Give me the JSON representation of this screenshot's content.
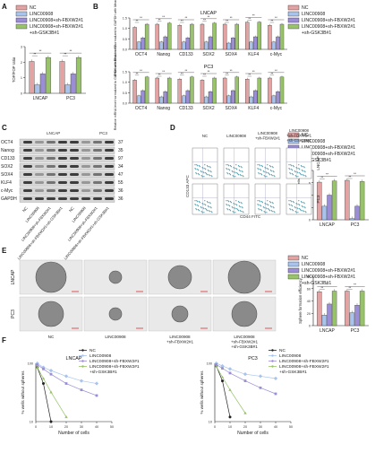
{
  "colors": {
    "NC": "#e2a3a2",
    "LINC00908": "#a9c4ec",
    "FBXW2": "#9b8dd6",
    "GSK3B": "#98c36a"
  },
  "panels": {
    "A": "A",
    "B": "B",
    "C": "C",
    "D": "D",
    "E": "E",
    "F": "F"
  },
  "legend": {
    "nc": "NC",
    "linc": "LINC00908",
    "fbx_line": "LINC00908+sh-FBXW2#1",
    "gsk_line1": "LINC00908+sh-FBXW2#1",
    "gsk_line2": "+sh-GSK3B#1"
  },
  "chart_data": [
    {
      "id": "A",
      "type": "bar",
      "categories": [
        "LNCAP",
        "PC3"
      ],
      "ylabel": "TOP/FOP ratio",
      "yticks": [
        "0",
        "1",
        "2",
        "3"
      ],
      "ylim": [
        0,
        3
      ],
      "series": [
        {
          "name": "NC",
          "values": [
            2.05,
            2.05
          ]
        },
        {
          "name": "LINC00908",
          "values": [
            0.55,
            0.55
          ]
        },
        {
          "name": "LINC00908+sh-FBXW2#1",
          "values": [
            1.25,
            1.25
          ]
        },
        {
          "name": "LINC00908+sh-FBXW2#1+sh-GSK3B#1",
          "values": [
            2.3,
            2.3
          ]
        }
      ]
    },
    {
      "id": "B1",
      "type": "bar",
      "title": "LNCAP",
      "categories": [
        "OCT4",
        "Nanog",
        "CD133",
        "SOX2",
        "SOX4",
        "KLF4",
        "c-Myc"
      ],
      "ylabel": "Relative mRNA level normalized to GAPDH with Mean ± SD",
      "yticks": [
        "0.0",
        "0.5",
        "1.0",
        "1.5"
      ],
      "ylim": [
        0,
        1.5
      ],
      "series": [
        {
          "name": "NC",
          "values": [
            1.05,
            1.2,
            1.15,
            1.2,
            1.2,
            1.3,
            1.15
          ]
        },
        {
          "name": "LINC00908",
          "values": [
            0.35,
            0.35,
            0.35,
            0.35,
            0.3,
            0.35,
            0.35
          ]
        },
        {
          "name": "LINC00908+sh-FBXW2#1",
          "values": [
            0.55,
            0.6,
            0.55,
            0.6,
            0.55,
            0.6,
            0.6
          ]
        },
        {
          "name": "LINC00908+sh-FBXW2#1+sh-GSK3B#1",
          "values": [
            1.2,
            1.25,
            1.2,
            1.25,
            1.2,
            1.3,
            1.2
          ]
        }
      ]
    },
    {
      "id": "B2",
      "type": "bar",
      "title": "PC3",
      "categories": [
        "OCT4",
        "Nanog",
        "CD133",
        "SOX2",
        "SOX4",
        "KLF4",
        "c-Myc"
      ],
      "ylabel": "Relative mRNA level normalized to GAPDH with Mean ± SD",
      "yticks": [
        "0.0",
        "0.5",
        "1.0",
        "1.5"
      ],
      "ylim": [
        0,
        1.5
      ],
      "series": [
        {
          "name": "NC",
          "values": [
            1.1,
            1.2,
            1.15,
            1.1,
            1.2,
            1.15,
            1.2
          ]
        },
        {
          "name": "LINC00908",
          "values": [
            0.35,
            0.3,
            0.35,
            0.3,
            0.35,
            0.3,
            0.35
          ]
        },
        {
          "name": "LINC00908+sh-FBXW2#1",
          "values": [
            0.6,
            0.55,
            0.6,
            0.55,
            0.6,
            0.6,
            0.55
          ]
        },
        {
          "name": "LINC00908+sh-FBXW2#1+sh-GSK3B#1",
          "values": [
            1.25,
            1.2,
            1.25,
            1.2,
            1.25,
            1.2,
            1.25
          ]
        }
      ]
    },
    {
      "id": "D",
      "type": "bar",
      "categories": [
        "LNCAP",
        "PC3"
      ],
      "ylabel": "CD133+CD44+ cells",
      "yticks": [
        "0",
        "2",
        "4",
        "6",
        "8"
      ],
      "ylim": [
        0,
        8
      ],
      "series": [
        {
          "name": "NC",
          "values": [
            6.1,
            6.4
          ]
        },
        {
          "name": "LINC00908",
          "values": [
            2.2,
            0.2
          ]
        },
        {
          "name": "LINC00908+sh-FBXW2#1",
          "values": [
            4.0,
            2.2
          ]
        },
        {
          "name": "LINC00908+sh-FBXW2#1+sh-GSK3B#1",
          "values": [
            6.3,
            6.2
          ]
        }
      ]
    },
    {
      "id": "E",
      "type": "bar",
      "categories": [
        "LNCAP",
        "PC3"
      ],
      "ylabel": "Sphere formation efficiency",
      "yticks": [
        "0",
        "20",
        "40",
        "60",
        "80"
      ],
      "ylim": [
        0,
        80
      ],
      "series": [
        {
          "name": "NC",
          "values": [
            55,
            56
          ]
        },
        {
          "name": "LINC00908",
          "values": [
            17,
            21
          ]
        },
        {
          "name": "LINC00908+sh-FBXW2#1",
          "values": [
            35,
            33
          ]
        },
        {
          "name": "LINC00908+sh-FBXW2#1+sh-GSK3B#1",
          "values": [
            56,
            56
          ]
        }
      ]
    },
    {
      "id": "F1",
      "type": "scatter",
      "title": "LNCAP",
      "xlabel": "Number of cells",
      "ylabel": "% wells without spheres",
      "xticks": [
        "0",
        "10",
        "20",
        "30",
        "40",
        "50"
      ],
      "yticks": [
        "10",
        "100"
      ],
      "xlim": [
        0,
        50
      ],
      "ylim": [
        10,
        100
      ],
      "log_y": true,
      "series": [
        {
          "name": "NC",
          "x": [
            1,
            5,
            10
          ],
          "y": [
            85,
            45,
            10
          ]
        },
        {
          "name": "LINC00908",
          "x": [
            1,
            5,
            10,
            20,
            30,
            40
          ],
          "y": [
            100,
            85,
            75,
            60,
            50,
            45
          ]
        },
        {
          "name": "LINC00908+sh-FBXW2#1",
          "x": [
            1,
            5,
            10,
            20,
            30,
            40
          ],
          "y": [
            95,
            80,
            65,
            45,
            35,
            28
          ]
        },
        {
          "name": "LINC00908+sh-FBXW2#1+sh-GSK3B#1",
          "x": [
            1,
            5,
            10,
            20
          ],
          "y": [
            85,
            55,
            32,
            12
          ]
        }
      ]
    },
    {
      "id": "F2",
      "type": "scatter",
      "title": "PC3",
      "xlabel": "Number of cells",
      "ylabel": "% wells without spheres",
      "xticks": [
        "0",
        "10",
        "20",
        "30",
        "40",
        "50"
      ],
      "yticks": [
        "10",
        "100"
      ],
      "xlim": [
        0,
        50
      ],
      "ylim": [
        10,
        100
      ],
      "log_y": true,
      "series": [
        {
          "name": "NC",
          "x": [
            1,
            5,
            10
          ],
          "y": [
            90,
            50,
            12
          ]
        },
        {
          "name": "LINC00908",
          "x": [
            1,
            5,
            10,
            20,
            30,
            40
          ],
          "y": [
            100,
            90,
            80,
            65,
            60,
            55
          ]
        },
        {
          "name": "LINC00908+sh-FBXW2#1",
          "x": [
            1,
            5,
            10,
            20,
            30,
            40
          ],
          "y": [
            95,
            82,
            68,
            50,
            38,
            30
          ]
        },
        {
          "name": "LINC00908+sh-FBXW2#1+sh-GSK3B#1",
          "x": [
            1,
            5,
            10,
            20
          ],
          "y": [
            88,
            58,
            35,
            14
          ]
        }
      ]
    }
  ],
  "western": {
    "header_left": "LNCAP",
    "header_right": "PC3",
    "labels": [
      "OCT4",
      "Nanog",
      "CD133",
      "SOX2",
      "SOX4",
      "KLF4",
      "c-Myc",
      "GAPDH"
    ],
    "kda": [
      "37",
      "35",
      "97",
      "34",
      "47",
      "55",
      "36",
      "36"
    ],
    "lanes": [
      "NC",
      "LINC00908",
      "LINC00908+sh-FBXW2#1",
      "LINC00908+sh-FBXW2#1+sh-GSK3B#1",
      "NC",
      "LINC00908",
      "LINC00908+sh-FBXW2#1",
      "LINC00908+sh-FBXW2#1+sh-GSK3B#1"
    ]
  },
  "flow": {
    "cols": [
      "NC",
      "LINC00908",
      "LINC00908+sh-FBXW2#1",
      "LINC00908+sh-FBXW2#1+sh-GSK3B#1"
    ],
    "rows": [
      "LNCAP",
      "PC3"
    ],
    "xlabel": "CD44 FITC",
    "ylabel": "CD133 APC"
  },
  "spheres": {
    "rows": [
      "LNCAP",
      "PC3"
    ],
    "cols": [
      "NC",
      "LINC00908",
      "LINC00908+sh-FBXW2#1",
      "LINC00908+sh-FBXW2#1+sh-GSK3B#1"
    ]
  },
  "sig": {
    "two": "**",
    "one": "*"
  }
}
